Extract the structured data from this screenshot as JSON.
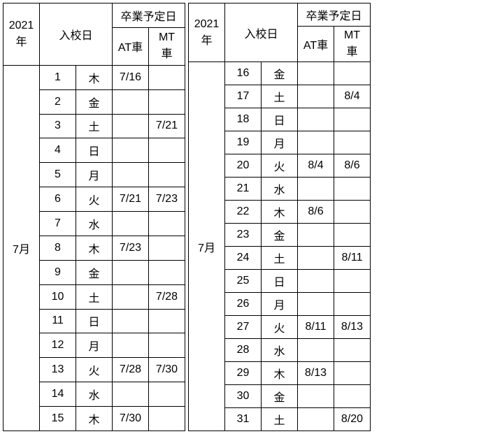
{
  "headers": {
    "year": "2021年",
    "enroll": "入校日",
    "grad": "卒業予定日",
    "at": "AT車",
    "mt": "MT車"
  },
  "month_label": "7月",
  "left": {
    "rows": [
      {
        "d": "1",
        "w": "木",
        "at": "7/16",
        "mt": ""
      },
      {
        "d": "2",
        "w": "金",
        "at": "",
        "mt": ""
      },
      {
        "d": "3",
        "w": "土",
        "at": "",
        "mt": "7/21"
      },
      {
        "d": "4",
        "w": "日",
        "at": "",
        "mt": ""
      },
      {
        "d": "5",
        "w": "月",
        "at": "",
        "mt": ""
      },
      {
        "d": "6",
        "w": "火",
        "at": "7/21",
        "mt": "7/23"
      },
      {
        "d": "7",
        "w": "水",
        "at": "",
        "mt": ""
      },
      {
        "d": "8",
        "w": "木",
        "at": "7/23",
        "mt": ""
      },
      {
        "d": "9",
        "w": "金",
        "at": "",
        "mt": ""
      },
      {
        "d": "10",
        "w": "土",
        "at": "",
        "mt": "7/28"
      },
      {
        "d": "11",
        "w": "日",
        "at": "",
        "mt": ""
      },
      {
        "d": "12",
        "w": "月",
        "at": "",
        "mt": ""
      },
      {
        "d": "13",
        "w": "火",
        "at": "7/28",
        "mt": "7/30"
      },
      {
        "d": "14",
        "w": "水",
        "at": "",
        "mt": ""
      },
      {
        "d": "15",
        "w": "木",
        "at": "7/30",
        "mt": ""
      }
    ]
  },
  "right": {
    "rows": [
      {
        "d": "16",
        "w": "金",
        "at": "",
        "mt": ""
      },
      {
        "d": "17",
        "w": "土",
        "at": "",
        "mt": "8/4"
      },
      {
        "d": "18",
        "w": "日",
        "at": "",
        "mt": ""
      },
      {
        "d": "19",
        "w": "月",
        "at": "",
        "mt": ""
      },
      {
        "d": "20",
        "w": "火",
        "at": "8/4",
        "mt": "8/6"
      },
      {
        "d": "21",
        "w": "水",
        "at": "",
        "mt": ""
      },
      {
        "d": "22",
        "w": "木",
        "at": "8/6",
        "mt": ""
      },
      {
        "d": "23",
        "w": "金",
        "at": "",
        "mt": ""
      },
      {
        "d": "24",
        "w": "土",
        "at": "",
        "mt": "8/11"
      },
      {
        "d": "25",
        "w": "日",
        "at": "",
        "mt": ""
      },
      {
        "d": "26",
        "w": "月",
        "at": "",
        "mt": ""
      },
      {
        "d": "27",
        "w": "火",
        "at": "8/11",
        "mt": "8/13"
      },
      {
        "d": "28",
        "w": "水",
        "at": "",
        "mt": ""
      },
      {
        "d": "29",
        "w": "木",
        "at": "8/13",
        "mt": ""
      },
      {
        "d": "30",
        "w": "金",
        "at": "",
        "mt": ""
      },
      {
        "d": "31",
        "w": "土",
        "at": "",
        "mt": "8/20"
      }
    ]
  }
}
